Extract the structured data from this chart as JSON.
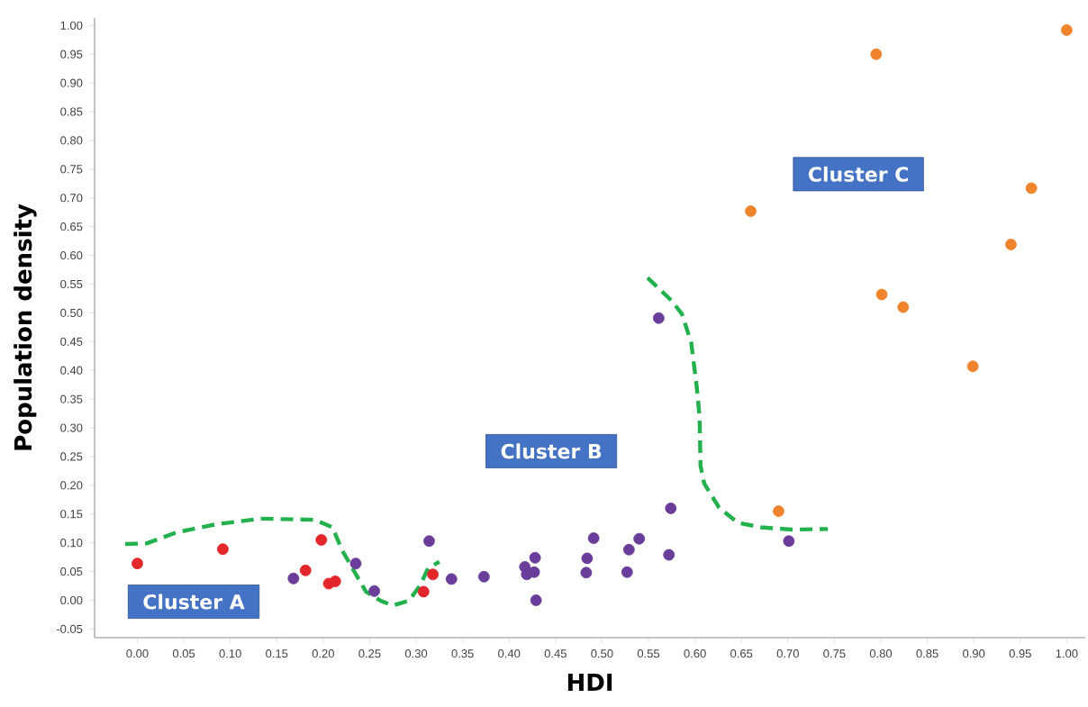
{
  "chart_data": {
    "type": "scatter",
    "xlabel": "HDI",
    "ylabel": "Population density",
    "xlim": [
      -0.046,
      1.02
    ],
    "ylim": [
      -0.065,
      1.013
    ],
    "xticks": [
      {
        "value": 0,
        "label": "0.00"
      },
      {
        "value": 0.05,
        "label": "0.05"
      },
      {
        "value": 0.1,
        "label": "0.10"
      },
      {
        "value": 0.15,
        "label": "0.15"
      },
      {
        "value": 0.2,
        "label": "0.20"
      },
      {
        "value": 0.25,
        "label": "0.25"
      },
      {
        "value": 0.3,
        "label": "0.30"
      },
      {
        "value": 0.35,
        "label": "0.35"
      },
      {
        "value": 0.4,
        "label": "0.40"
      },
      {
        "value": 0.45,
        "label": "0.45"
      },
      {
        "value": 0.5,
        "label": "0.50"
      },
      {
        "value": 0.55,
        "label": "0.55"
      },
      {
        "value": 0.6,
        "label": "0.60"
      },
      {
        "value": 0.65,
        "label": "0.65"
      },
      {
        "value": 0.7,
        "label": "0.70"
      },
      {
        "value": 0.75,
        "label": "0.75"
      },
      {
        "value": 0.8,
        "label": "0.80"
      },
      {
        "value": 0.85,
        "label": "0.85"
      },
      {
        "value": 0.9,
        "label": "0.90"
      },
      {
        "value": 0.95,
        "label": "0.95"
      },
      {
        "value": 1,
        "label": "1.00"
      }
    ],
    "yticks": [
      {
        "value": -0.05,
        "label": "-0.05"
      },
      {
        "value": 0,
        "label": "0.00"
      },
      {
        "value": 0.05,
        "label": "0.05"
      },
      {
        "value": 0.1,
        "label": "0.10"
      },
      {
        "value": 0.15,
        "label": "0.15"
      },
      {
        "value": 0.2,
        "label": "0.20"
      },
      {
        "value": 0.25,
        "label": "0.25"
      },
      {
        "value": 0.3,
        "label": "0.30"
      },
      {
        "value": 0.35,
        "label": "0.35"
      },
      {
        "value": 0.4,
        "label": "0.40"
      },
      {
        "value": 0.45,
        "label": "0.45"
      },
      {
        "value": 0.5,
        "label": "0.50"
      },
      {
        "value": 0.55,
        "label": "0.55"
      },
      {
        "value": 0.6,
        "label": "0.60"
      },
      {
        "value": 0.65,
        "label": "0.65"
      },
      {
        "value": 0.7,
        "label": "0.70"
      },
      {
        "value": 0.75,
        "label": "0.75"
      },
      {
        "value": 0.8,
        "label": "0.80"
      },
      {
        "value": 0.85,
        "label": "0.85"
      },
      {
        "value": 0.9,
        "label": "0.90"
      },
      {
        "value": 0.95,
        "label": "0.95"
      },
      {
        "value": 1,
        "label": "1.00"
      }
    ],
    "grid": false,
    "series": [
      {
        "color": "#e3262b",
        "marker": "circle",
        "x": [
          0.0,
          0.092,
          0.198,
          0.181,
          0.206,
          0.213,
          0.308,
          0.318
        ],
        "values": [
          0.064,
          0.089,
          0.105,
          0.052,
          0.029,
          0.033,
          0.015,
          0.045
        ]
      },
      {
        "color": "#6a3d9a",
        "marker": "circle",
        "x": [
          0.168,
          0.235,
          0.255,
          0.314,
          0.338,
          0.373,
          0.417,
          0.419,
          0.427,
          0.428,
          0.429,
          0.484,
          0.483,
          0.491,
          0.527,
          0.529,
          0.54,
          0.572,
          0.574,
          0.561,
          0.701
        ],
        "values": [
          0.038,
          0.064,
          0.016,
          0.103,
          0.037,
          0.041,
          0.058,
          0.045,
          0.049,
          0.074,
          0.0,
          0.073,
          0.048,
          0.108,
          0.049,
          0.088,
          0.107,
          0.079,
          0.16,
          0.491,
          0.103
        ]
      },
      {
        "color": "#f0842c",
        "marker": "circle",
        "x": [
          0.69,
          1.0,
          0.795,
          0.66,
          0.962,
          0.94,
          0.801,
          0.824,
          0.899
        ],
        "values": [
          0.155,
          0.992,
          0.95,
          0.677,
          0.717,
          0.619,
          0.532,
          0.51,
          0.407
        ]
      },
      {
        "type": "line",
        "color": "#22b14c",
        "line_style": "dashed",
        "marker": "none",
        "x": [
          -0.013,
          0.01,
          0.042,
          0.084,
          0.133,
          0.191,
          0.21,
          0.22,
          0.236,
          0.246,
          0.262,
          0.275,
          0.292,
          0.304,
          0.313,
          0.325,
          0.44,
          0.549,
          0.575,
          0.586,
          0.596,
          0.602,
          0.605,
          0.606,
          0.61,
          0.626,
          0.646,
          0.671,
          0.704,
          0.743
        ],
        "values": [
          0.098,
          0.099,
          0.118,
          0.132,
          0.142,
          0.14,
          0.127,
          0.088,
          0.043,
          0.015,
          -0.001,
          -0.009,
          -0.001,
          0.025,
          0.056,
          0.067,
          null,
          0.561,
          0.521,
          0.498,
          0.448,
          0.37,
          0.318,
          0.234,
          0.203,
          0.161,
          0.135,
          0.127,
          0.123,
          0.124
        ]
      }
    ],
    "annotations": [
      "Cluster A",
      "Cluster B",
      "Cluster C"
    ]
  }
}
